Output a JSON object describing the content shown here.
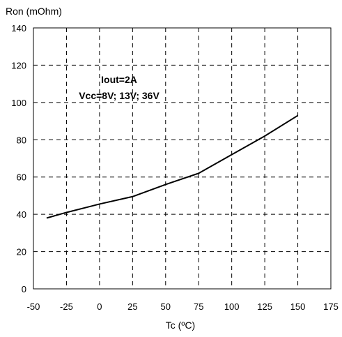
{
  "chart_data": {
    "type": "line",
    "xlabel": "Tc (ºC)",
    "ylabel": "Ron (mOhm)",
    "xlim": [
      -50,
      175
    ],
    "ylim": [
      0,
      140
    ],
    "xticks": [
      -50,
      -25,
      0,
      25,
      50,
      75,
      100,
      125,
      150,
      175
    ],
    "yticks": [
      0,
      20,
      40,
      60,
      80,
      100,
      120,
      140
    ],
    "grid": "dashed",
    "annotations": [
      "Iout=2A",
      "Vcc=8V; 13V; 36V"
    ],
    "series": [
      {
        "x": [
          -40,
          -25,
          0,
          25,
          50,
          75,
          100,
          125,
          150
        ],
        "values": [
          38,
          41,
          45.5,
          49.5,
          56,
          62,
          72,
          82,
          93
        ]
      }
    ]
  }
}
